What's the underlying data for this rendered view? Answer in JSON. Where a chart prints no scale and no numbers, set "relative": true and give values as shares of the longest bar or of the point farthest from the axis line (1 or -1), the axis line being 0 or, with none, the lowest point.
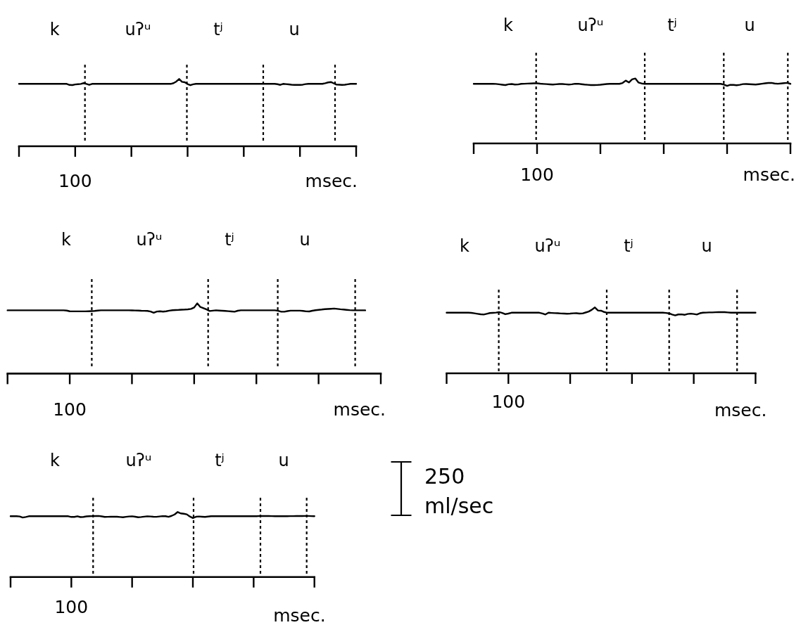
{
  "chart_data": [
    {
      "type": "line",
      "relative": true,
      "xlabel": "msec.",
      "categories": [
        null,
        null,
        null,
        null,
        null,
        null,
        null,
        null,
        null,
        null,
        null,
        null,
        null,
        null,
        null,
        null,
        null,
        null,
        null,
        null,
        null,
        null,
        null,
        null,
        null,
        null,
        null,
        null,
        null,
        null,
        null,
        null,
        null,
        null,
        null,
        null,
        null,
        null,
        null,
        null,
        null,
        null,
        null,
        null,
        null,
        null,
        null,
        null,
        null,
        null,
        null,
        null,
        null,
        null,
        null,
        null,
        null,
        null,
        null,
        null,
        null,
        null,
        null,
        null,
        null,
        null,
        null,
        null,
        null,
        null,
        null,
        null,
        null,
        null,
        null,
        null,
        null,
        null,
        null,
        null,
        null,
        null,
        null,
        null,
        null,
        null,
        null,
        null,
        null,
        null,
        null,
        null,
        null,
        null,
        null,
        null,
        null,
        null,
        null,
        null,
        null,
        null,
        null,
        null,
        null,
        null,
        null,
        null,
        null,
        null,
        null,
        null,
        null,
        null,
        null,
        null,
        null,
        null,
        null,
        null,
        null
      ],
      "series": [
        {
          "color": "#000000",
          "values": [
            0.927,
            0.927,
            0.927,
            0.927,
            0.927,
            0.927,
            0.927,
            0.927,
            0.927,
            0.927,
            0.927,
            0.927,
            0.927,
            0.927,
            0.927,
            0.927,
            0.927,
            0.927,
            0.911,
            0.909,
            0.918,
            0.922,
            0.926,
            0.938,
            0.925,
            0.912,
            0.927,
            0.927,
            0.927,
            0.927,
            0.927,
            0.927,
            0.927,
            0.927,
            0.927,
            0.927,
            0.927,
            0.927,
            0.927,
            0.927,
            0.927,
            0.927,
            0.927,
            0.927,
            0.927,
            0.927,
            0.927,
            0.927,
            0.927,
            0.927,
            0.927,
            0.927,
            0.927,
            0.927,
            0.927,
            0.938,
            0.962,
            1.0,
            0.958,
            0.951,
            0.924,
            0.907,
            0.921,
            0.927,
            0.927,
            0.927,
            0.927,
            0.927,
            0.927,
            0.927,
            0.927,
            0.927,
            0.927,
            0.927,
            0.927,
            0.927,
            0.927,
            0.927,
            0.927,
            0.927,
            0.927,
            0.927,
            0.927,
            0.927,
            0.927,
            0.927,
            0.927,
            0.927,
            0.927,
            0.927,
            0.927,
            0.927,
            0.922,
            0.912,
            0.927,
            0.923,
            0.919,
            0.914,
            0.911,
            0.911,
            0.911,
            0.915,
            0.923,
            0.927,
            0.927,
            0.927,
            0.927,
            0.927,
            0.927,
            0.937,
            0.948,
            0.954,
            0.935,
            0.916,
            0.914,
            0.912,
            0.914,
            0.921,
            0.927,
            0.927,
            0.927
          ]
        }
      ],
      "annotations": [
        "k",
        "uʔᵘ",
        "tʲ",
        "u",
        "100"
      ]
    },
    {
      "type": "line",
      "relative": true,
      "xlabel": "msec.",
      "categories": [
        null,
        null,
        null,
        null,
        null,
        null,
        null,
        null,
        null,
        null,
        null,
        null,
        null,
        null,
        null,
        null,
        null,
        null,
        null,
        null,
        null,
        null,
        null,
        null,
        null,
        null,
        null,
        null,
        null,
        null,
        null,
        null,
        null,
        null,
        null,
        null,
        null,
        null,
        null,
        null,
        null,
        null,
        null,
        null,
        null,
        null,
        null,
        null,
        null,
        null,
        null,
        null,
        null,
        null,
        null,
        null,
        null,
        null,
        null,
        null,
        null,
        null,
        null,
        null,
        null,
        null,
        null,
        null,
        null,
        null,
        null,
        null,
        null,
        null,
        null,
        null,
        null,
        null,
        null,
        null,
        null,
        null,
        null,
        null,
        null,
        null,
        null,
        null,
        null,
        null,
        null,
        null,
        null,
        null,
        null,
        null,
        null,
        null,
        null,
        null,
        null
      ],
      "series": [
        {
          "color": "#000000",
          "values": [
            0.917,
            0.917,
            0.917,
            0.917,
            0.917,
            0.917,
            0.917,
            0.916,
            0.91,
            0.904,
            0.898,
            0.91,
            0.914,
            0.906,
            0.908,
            0.917,
            0.919,
            0.921,
            0.923,
            0.925,
            0.926,
            0.92,
            0.916,
            0.913,
            0.909,
            0.906,
            0.91,
            0.914,
            0.915,
            0.911,
            0.907,
            0.911,
            0.919,
            0.918,
            0.912,
            0.906,
            0.902,
            0.898,
            0.899,
            0.9,
            0.903,
            0.909,
            0.915,
            0.917,
            0.917,
            0.917,
            0.917,
            0.93,
            0.967,
            0.938,
            0.987,
            1.0,
            0.938,
            0.923,
            0.917,
            0.917,
            0.917,
            0.917,
            0.917,
            0.917,
            0.917,
            0.917,
            0.917,
            0.917,
            0.917,
            0.917,
            0.917,
            0.917,
            0.917,
            0.917,
            0.917,
            0.917,
            0.917,
            0.917,
            0.917,
            0.917,
            0.917,
            0.917,
            0.917,
            0.905,
            0.885,
            0.902,
            0.901,
            0.896,
            0.903,
            0.913,
            0.915,
            0.912,
            0.909,
            0.906,
            0.912,
            0.919,
            0.925,
            0.931,
            0.932,
            0.923,
            0.918,
            0.923,
            0.928,
            0.932,
            0.917
          ]
        }
      ],
      "annotations": [
        "k",
        "uʔᵘ",
        "tʲ",
        "u",
        "100"
      ]
    },
    {
      "type": "line",
      "relative": true,
      "xlabel": "msec.",
      "categories": [
        null,
        null,
        null,
        null,
        null,
        null,
        null,
        null,
        null,
        null,
        null,
        null,
        null,
        null,
        null,
        null,
        null,
        null,
        null,
        null,
        null,
        null,
        null,
        null,
        null,
        null,
        null,
        null,
        null,
        null,
        null,
        null,
        null,
        null,
        null,
        null,
        null,
        null,
        null,
        null,
        null,
        null,
        null,
        null,
        null,
        null,
        null,
        null,
        null,
        null,
        null,
        null,
        null,
        null,
        null,
        null,
        null,
        null,
        null,
        null,
        null,
        null,
        null,
        null,
        null,
        null,
        null,
        null,
        null,
        null,
        null,
        null,
        null,
        null,
        null,
        null,
        null,
        null,
        null,
        null,
        null,
        null,
        null,
        null,
        null,
        null,
        null,
        null,
        null,
        null,
        null,
        null,
        null,
        null,
        null,
        null,
        null,
        null,
        null,
        null,
        null,
        null,
        null,
        null,
        null,
        null,
        null,
        null,
        null,
        null,
        null,
        null,
        null,
        null,
        null,
        null,
        null,
        null,
        null,
        null,
        null
      ],
      "series": [
        {
          "color": "#000000",
          "values": [
            0.9,
            0.9,
            0.9,
            0.9,
            0.9,
            0.9,
            0.9,
            0.9,
            0.9,
            0.9,
            0.9,
            0.9,
            0.9,
            0.9,
            0.9,
            0.9,
            0.9,
            0.9,
            0.9,
            0.896,
            0.887,
            0.885,
            0.885,
            0.885,
            0.885,
            0.885,
            0.887,
            0.889,
            0.891,
            0.897,
            0.9,
            0.9,
            0.9,
            0.9,
            0.9,
            0.9,
            0.9,
            0.9,
            0.9,
            0.9,
            0.899,
            0.898,
            0.896,
            0.894,
            0.893,
            0.891,
            0.883,
            0.865,
            0.883,
            0.887,
            0.881,
            0.887,
            0.895,
            0.901,
            0.904,
            0.906,
            0.909,
            0.911,
            0.914,
            0.92,
            0.94,
            1.0,
            0.947,
            0.931,
            0.912,
            0.89,
            0.895,
            0.9,
            0.897,
            0.894,
            0.891,
            0.888,
            0.884,
            0.88,
            0.894,
            0.9,
            0.9,
            0.9,
            0.9,
            0.9,
            0.9,
            0.9,
            0.9,
            0.9,
            0.9,
            0.9,
            0.9,
            0.893,
            0.88,
            0.88,
            0.889,
            0.895,
            0.895,
            0.895,
            0.895,
            0.892,
            0.885,
            0.884,
            0.894,
            0.902,
            0.907,
            0.911,
            0.916,
            0.919,
            0.922,
            0.925,
            0.92,
            0.915,
            0.911,
            0.907,
            0.903,
            0.9,
            0.9,
            0.9,
            0.9,
            0.9,
            null,
            null,
            null,
            null,
            null
          ]
        }
      ],
      "annotations": [
        "k",
        "uʔᵘ",
        "tʲ",
        "u",
        "100"
      ]
    },
    {
      "type": "line",
      "relative": true,
      "xlabel": "msec.",
      "categories": [
        null,
        null,
        null,
        null,
        null,
        null,
        null,
        null,
        null,
        null,
        null,
        null,
        null,
        null,
        null,
        null,
        null,
        null,
        null,
        null,
        null,
        null,
        null,
        null,
        null,
        null,
        null,
        null,
        null,
        null,
        null,
        null,
        null,
        null,
        null,
        null,
        null,
        null,
        null,
        null,
        null,
        null,
        null,
        null,
        null,
        null,
        null,
        null,
        null,
        null,
        null,
        null,
        null,
        null,
        null,
        null,
        null,
        null,
        null,
        null,
        null,
        null,
        null,
        null,
        null,
        null,
        null,
        null,
        null,
        null,
        null,
        null,
        null,
        null,
        null,
        null,
        null,
        null,
        null,
        null,
        null,
        null,
        null,
        null,
        null,
        null,
        null,
        null,
        null,
        null,
        null,
        null,
        null,
        null,
        null,
        null,
        null,
        null,
        null,
        null,
        null
      ],
      "series": [
        {
          "color": "#000000",
          "values": [
            0.92,
            0.92,
            0.92,
            0.92,
            0.92,
            0.92,
            0.92,
            0.92,
            0.918,
            0.911,
            0.903,
            0.896,
            0.892,
            0.904,
            0.915,
            0.918,
            0.922,
            0.929,
            0.916,
            0.897,
            0.907,
            0.92,
            0.92,
            0.92,
            0.92,
            0.92,
            0.92,
            0.92,
            0.92,
            0.92,
            0.92,
            0.909,
            0.893,
            0.92,
            0.917,
            0.914,
            0.912,
            0.909,
            0.907,
            0.905,
            0.907,
            0.911,
            0.912,
            0.907,
            0.909,
            0.923,
            0.938,
            0.964,
            1.0,
            0.954,
            0.95,
            0.931,
            0.92,
            0.92,
            0.92,
            0.92,
            0.92,
            0.92,
            0.92,
            0.92,
            0.92,
            0.92,
            0.92,
            0.92,
            0.92,
            0.92,
            0.92,
            0.92,
            0.92,
            0.92,
            0.92,
            0.917,
            0.91,
            0.893,
            0.88,
            0.894,
            0.895,
            0.888,
            0.901,
            0.906,
            0.9,
            0.893,
            0.912,
            0.921,
            0.922,
            0.924,
            0.925,
            0.927,
            0.928,
            0.93,
            0.929,
            0.925,
            0.92,
            0.92,
            0.92,
            0.92,
            0.92,
            0.92,
            0.92,
            0.92,
            0.92
          ]
        }
      ],
      "annotations": [
        "k",
        "uʔᵘ",
        "tʲ",
        "u",
        "100"
      ]
    },
    {
      "type": "line",
      "relative": true,
      "xlabel": "msec.",
      "categories": [
        null,
        null,
        null,
        null,
        null,
        null,
        null,
        null,
        null,
        null,
        null,
        null,
        null,
        null,
        null,
        null,
        null,
        null,
        null,
        null,
        null,
        null,
        null,
        null,
        null,
        null,
        null,
        null,
        null,
        null,
        null,
        null,
        null,
        null,
        null,
        null,
        null,
        null,
        null,
        null,
        null,
        null,
        null,
        null,
        null,
        null,
        null,
        null,
        null,
        null,
        null,
        null,
        null,
        null,
        null,
        null,
        null,
        null,
        null,
        null,
        null,
        null,
        null,
        null,
        null,
        null,
        null,
        null,
        null,
        null,
        null,
        null,
        null,
        null,
        null,
        null,
        null,
        null,
        null,
        null,
        null,
        null,
        null,
        null,
        null,
        null,
        null,
        null,
        null,
        null,
        null,
        null,
        null,
        null,
        null,
        null,
        null,
        null,
        null,
        null,
        null
      ],
      "series": [
        {
          "color": "#000000",
          "values": [
            0.935,
            0.935,
            0.935,
            0.932,
            0.916,
            0.924,
            0.935,
            0.935,
            0.935,
            0.935,
            0.935,
            0.935,
            0.935,
            0.935,
            0.935,
            0.935,
            0.935,
            0.935,
            0.935,
            0.935,
            0.924,
            0.925,
            0.935,
            0.922,
            0.925,
            0.933,
            0.936,
            0.937,
            0.939,
            0.94,
            0.933,
            0.925,
            0.926,
            0.927,
            0.929,
            0.927,
            0.923,
            0.92,
            0.926,
            0.932,
            0.934,
            0.927,
            0.92,
            0.923,
            0.929,
            0.934,
            0.931,
            0.927,
            0.926,
            0.931,
            0.937,
            0.936,
            0.926,
            0.941,
            0.963,
            1.0,
            0.979,
            0.973,
            0.964,
            0.931,
            0.908,
            0.927,
            0.932,
            0.928,
            0.925,
            0.93,
            0.935,
            0.935,
            0.935,
            0.935,
            0.935,
            0.935,
            0.935,
            0.935,
            0.935,
            0.935,
            0.935,
            0.935,
            0.935,
            0.935,
            0.935,
            0.935,
            0.94,
            0.939,
            0.939,
            0.938,
            0.937,
            0.936,
            0.936,
            0.935,
            0.936,
            0.936,
            0.937,
            0.937,
            0.938,
            0.938,
            0.939,
            0.94,
            0.94,
            0.937,
            0.935
          ]
        }
      ],
      "annotations": [
        "k",
        "uʔᵘ",
        "tʲ",
        "u",
        "100",
        "250 ml/sec"
      ]
    }
  ]
}
